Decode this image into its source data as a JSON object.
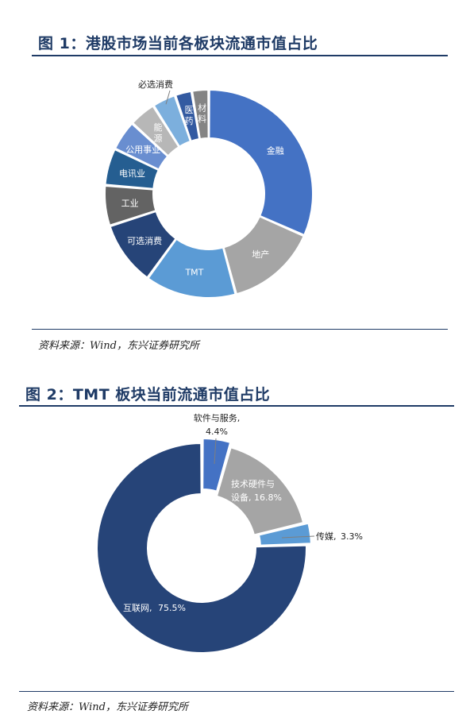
{
  "figure1": {
    "title": "图 1：港股市场当前各板块流通市值占比",
    "source": "资料来源：Wind，东兴证券研究所"
  },
  "figure2": {
    "title": "图 2：TMT 板块当前流通市值占比",
    "source": "资料来源：Wind，东兴证券研究所"
  },
  "chart_data": [
    {
      "type": "pie",
      "title": "图 1：港股市场当前各板块流通市值占比",
      "categories": [
        "金融",
        "地产",
        "TMT",
        "可选消费",
        "工业",
        "电讯业",
        "公用事业",
        "能源",
        "必选消费",
        "医药",
        "材料"
      ],
      "values": [
        30.0,
        13.5,
        13.5,
        9.5,
        6.0,
        5.5,
        4.5,
        4.0,
        3.5,
        2.5,
        2.5
      ],
      "colors": [
        "#4472c4",
        "#a5a5a5",
        "#5b9bd5",
        "#264478",
        "#636363",
        "#255e91",
        "#698ed0",
        "#b7b7b7",
        "#7cafdd",
        "#335aa1",
        "#848484"
      ]
    },
    {
      "type": "pie",
      "title": "图 2：TMT 板块当前流通市值占比",
      "categories": [
        "软件与服务",
        "技术硬件与设备",
        "传媒",
        "互联网"
      ],
      "values": [
        4.4,
        16.8,
        3.3,
        75.5
      ],
      "labels": [
        "4.4%",
        "16.8%",
        "3.3%",
        "75.5%"
      ],
      "colors": [
        "#4472c4",
        "#a5a5a5",
        "#5b9bd5",
        "#264478"
      ]
    }
  ]
}
